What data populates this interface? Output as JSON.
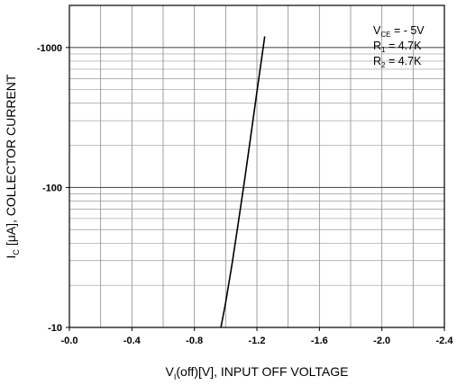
{
  "chart_data": {
    "type": "line",
    "xlabel": "V₁(off)[V], INPUT OFF VOLTAGE",
    "ylabel": "Iₓ [μA], COLLECTOR CURRENT",
    "x_scale": "linear",
    "y_scale": "log",
    "xlim": [
      0.0,
      -2.4
    ],
    "ylim": [
      -10,
      -2000
    ],
    "x_ticks": [
      0.0,
      -0.4,
      -0.8,
      -1.2,
      -1.6,
      -2.0,
      -2.4
    ],
    "x_tick_labels": [
      "-0.0",
      "-0.4",
      "-0.8",
      "-1.2",
      "-1.6",
      "-2.0",
      "-2.4"
    ],
    "y_ticks": [
      -10,
      -100,
      -1000
    ],
    "y_tick_labels": [
      "-10",
      "-100",
      "-1000"
    ],
    "grid": true,
    "legend": "none",
    "annotations": [
      {
        "main": "V",
        "sub": "CE",
        "rest": " = - 5V"
      },
      {
        "main": "R",
        "sub": "1",
        "rest": " = 4.7K"
      },
      {
        "main": "R",
        "sub": "2",
        "rest": " = 4.7K"
      }
    ],
    "series": [
      {
        "x": [
          -0.97,
          -1.0,
          -1.04,
          -1.08,
          -1.12,
          -1.16,
          -1.2,
          -1.25
        ],
        "values": [
          -10,
          -15,
          -28,
          -55,
          -110,
          -230,
          -480,
          -1200
        ]
      }
    ]
  },
  "labels": {
    "y_main": "I",
    "y_sub": "C",
    "y_rest": " [μA], COLLECTOR CURRENT",
    "x_main": "V",
    "x_sub": "I",
    "x_rest": "(off)[V], INPUT OFF VOLTAGE"
  }
}
